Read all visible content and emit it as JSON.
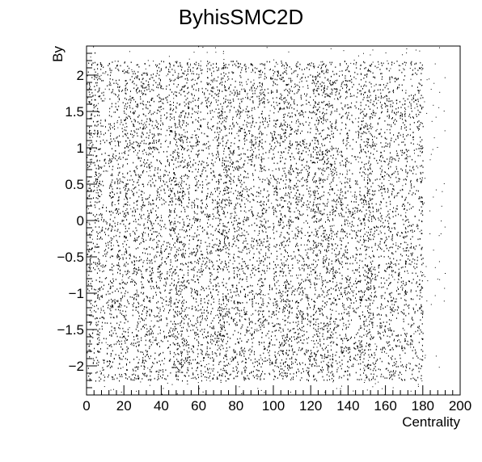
{
  "chart_data": {
    "type": "heatmap",
    "title": "ByhisSMC2D",
    "xlabel": "Centrality",
    "ylabel": "By",
    "xlim": [
      0,
      200
    ],
    "ylim": [
      -2.4,
      2.4
    ],
    "x_ticks": [
      0,
      20,
      40,
      60,
      80,
      100,
      120,
      140,
      160,
      180,
      200
    ],
    "x_tick_labels": [
      "0",
      "20",
      "40",
      "60",
      "80",
      "100",
      "120",
      "140",
      "160",
      "180",
      "200"
    ],
    "y_ticks": [
      -2,
      -1.5,
      -1,
      -0.5,
      0,
      0.5,
      1,
      1.5,
      2
    ],
    "y_tick_labels": [
      "−2",
      "−1.5",
      "−1",
      "−0.5",
      "0",
      "0.5",
      "1",
      "1.5",
      "2"
    ],
    "data_x_range": [
      0,
      192
    ],
    "data_y_range": [
      -2.4,
      2.4
    ],
    "dense_y_band": [
      -2.2,
      2.2
    ],
    "dense_x_range": [
      0,
      180
    ],
    "palette": "black points on white (scatter style)",
    "grid": false
  }
}
